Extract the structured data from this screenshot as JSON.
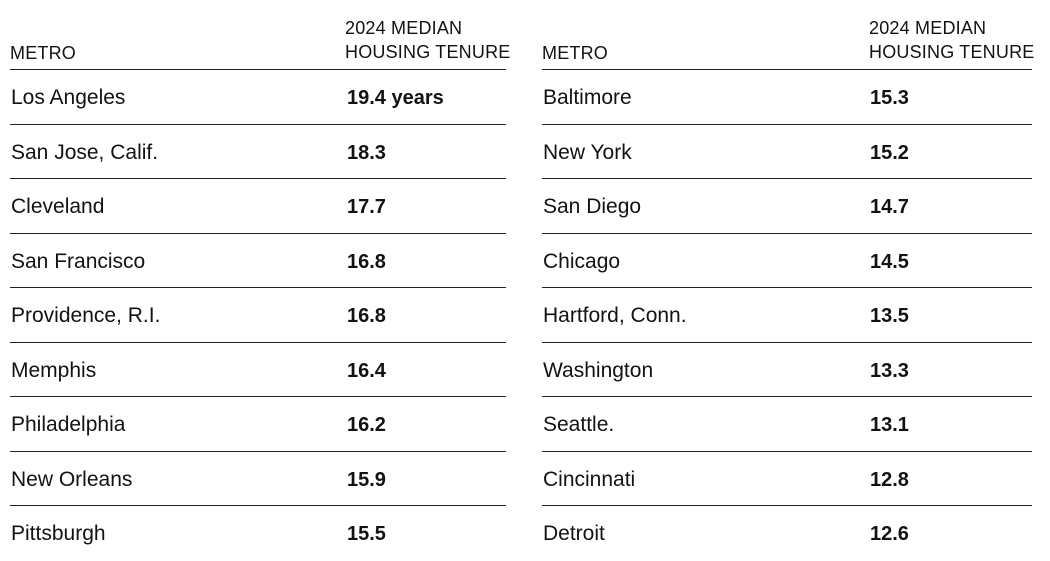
{
  "chart_data": {
    "type": "table",
    "columns": [
      "METRO",
      "2024 MEDIAN HOUSING TENURE"
    ],
    "column_header_lines": {
      "metro": "METRO",
      "value_line1": "2024 MEDIAN",
      "value_line2": "HOUSING TENURE"
    },
    "first_value_unit": "years",
    "left_rows": [
      {
        "metro": "Los Angeles",
        "value": "19.4"
      },
      {
        "metro": "San Jose, Calif.",
        "value": "18.3"
      },
      {
        "metro": "Cleveland",
        "value": "17.7"
      },
      {
        "metro": "San Francisco",
        "value": "16.8"
      },
      {
        "metro": "Providence, R.I.",
        "value": "16.8"
      },
      {
        "metro": "Memphis",
        "value": "16.4"
      },
      {
        "metro": "Philadelphia",
        "value": "16.2"
      },
      {
        "metro": "New Orleans",
        "value": "15.9"
      },
      {
        "metro": "Pittsburgh",
        "value": "15.5"
      }
    ],
    "right_rows": [
      {
        "metro": "Baltimore",
        "value": "15.3"
      },
      {
        "metro": "New York",
        "value": "15.2"
      },
      {
        "metro": "San Diego",
        "value": "14.7"
      },
      {
        "metro": "Chicago",
        "value": "14.5"
      },
      {
        "metro": "Hartford, Conn.",
        "value": "13.5"
      },
      {
        "metro": "Washington",
        "value": "13.3"
      },
      {
        "metro": "Seattle.",
        "value": "13.1"
      },
      {
        "metro": "Cincinnati",
        "value": "12.8"
      },
      {
        "metro": "Detroit",
        "value": "12.6"
      }
    ]
  }
}
